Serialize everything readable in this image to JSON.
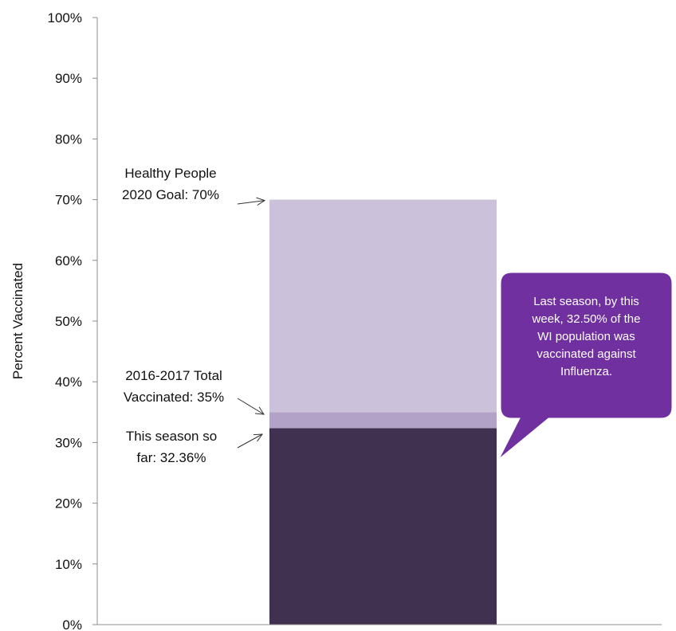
{
  "chart_data": {
    "type": "bar",
    "title": "",
    "xlabel": "",
    "ylabel": "Percent Vaccinated",
    "ylim": [
      0,
      100
    ],
    "yticks": [
      "0%",
      "10%",
      "20%",
      "30%",
      "40%",
      "50%",
      "60%",
      "70%",
      "80%",
      "90%",
      "100%"
    ],
    "grid": false,
    "stacked_segments": [
      {
        "value_start": 0,
        "value_end": 32.36,
        "color": "#403151"
      },
      {
        "value_start": 32.36,
        "value_end": 35,
        "color": "#b3a2c7"
      },
      {
        "value_start": 35,
        "value_end": 70,
        "color": "#ccc1da"
      }
    ],
    "annotations": [
      {
        "lines": [
          "Healthy People",
          "2020 Goal: 70%"
        ],
        "points_to": 70
      },
      {
        "lines": [
          "2016-2017 Total",
          "Vaccinated: 35%"
        ],
        "points_to": 35
      },
      {
        "lines": [
          "This season so",
          "far: 32.36%"
        ],
        "points_to": 32.36
      }
    ],
    "callout": {
      "lines": [
        "Last season, by this",
        "week, 32.50% of the",
        "WI population was",
        "vaccinated against",
        "Influenza."
      ],
      "color": "#7030a0"
    }
  }
}
